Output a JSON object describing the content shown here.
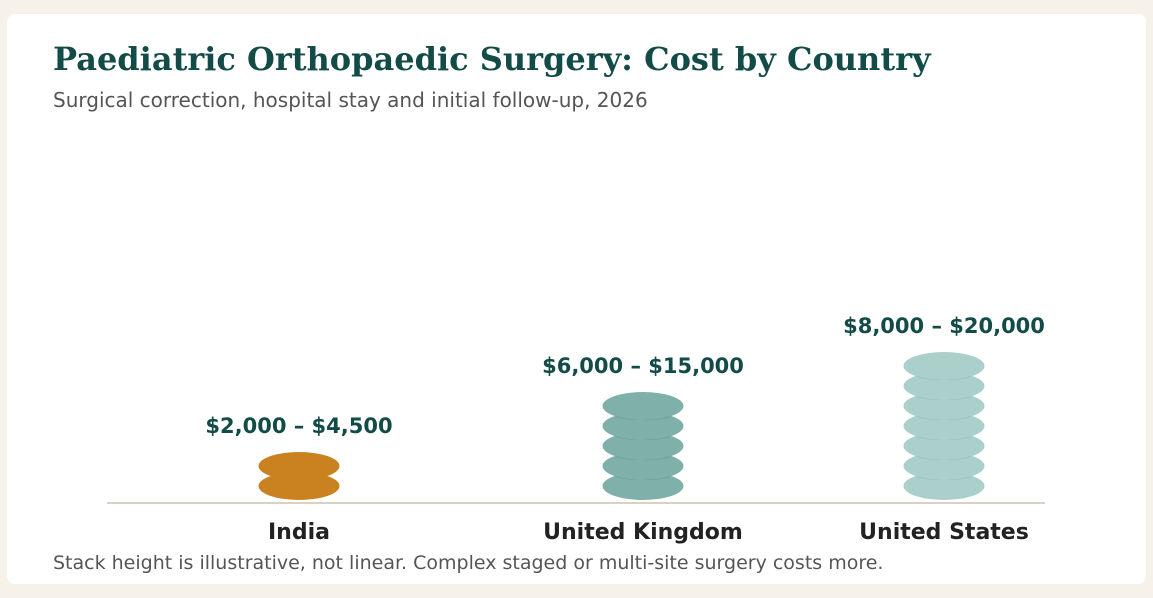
{
  "header": {
    "title": "Paediatric Orthopaedic Surgery: Cost by Country",
    "subtitle": "Surgical correction, hospital stay and initial follow-up, 2026"
  },
  "footnote": "Stack height is illustrative, not linear. Complex staged or multi-site surgery costs more.",
  "colors": {
    "title": "#124b47",
    "range_label": "#124b47",
    "category_label": "#222222",
    "baseline": "#d8d2c2"
  },
  "chart_data": {
    "type": "bar",
    "title": "Paediatric Orthopaedic Surgery: Cost by Country",
    "subtitle": "Surgical correction, hospital stay and initial follow-up, 2026",
    "categories": [
      "India",
      "United Kingdom",
      "United States"
    ],
    "series": [
      {
        "values": [
          [
            2000,
            4500
          ],
          [
            6000,
            15000
          ],
          [
            8000,
            20000
          ]
        ],
        "labels": [
          "$2,000 – $4,500",
          "$6,000 – $15,000",
          "$8,000 – $20,000"
        ],
        "stack_counts": [
          2,
          5,
          7
        ],
        "colors": [
          "#c9821f",
          "#7fb0aa",
          "#abcfca"
        ],
        "accent_colors": [
          "#c9821f",
          "#3f8880",
          "#6faaa3"
        ]
      }
    ],
    "grid": false,
    "legend": "none"
  }
}
